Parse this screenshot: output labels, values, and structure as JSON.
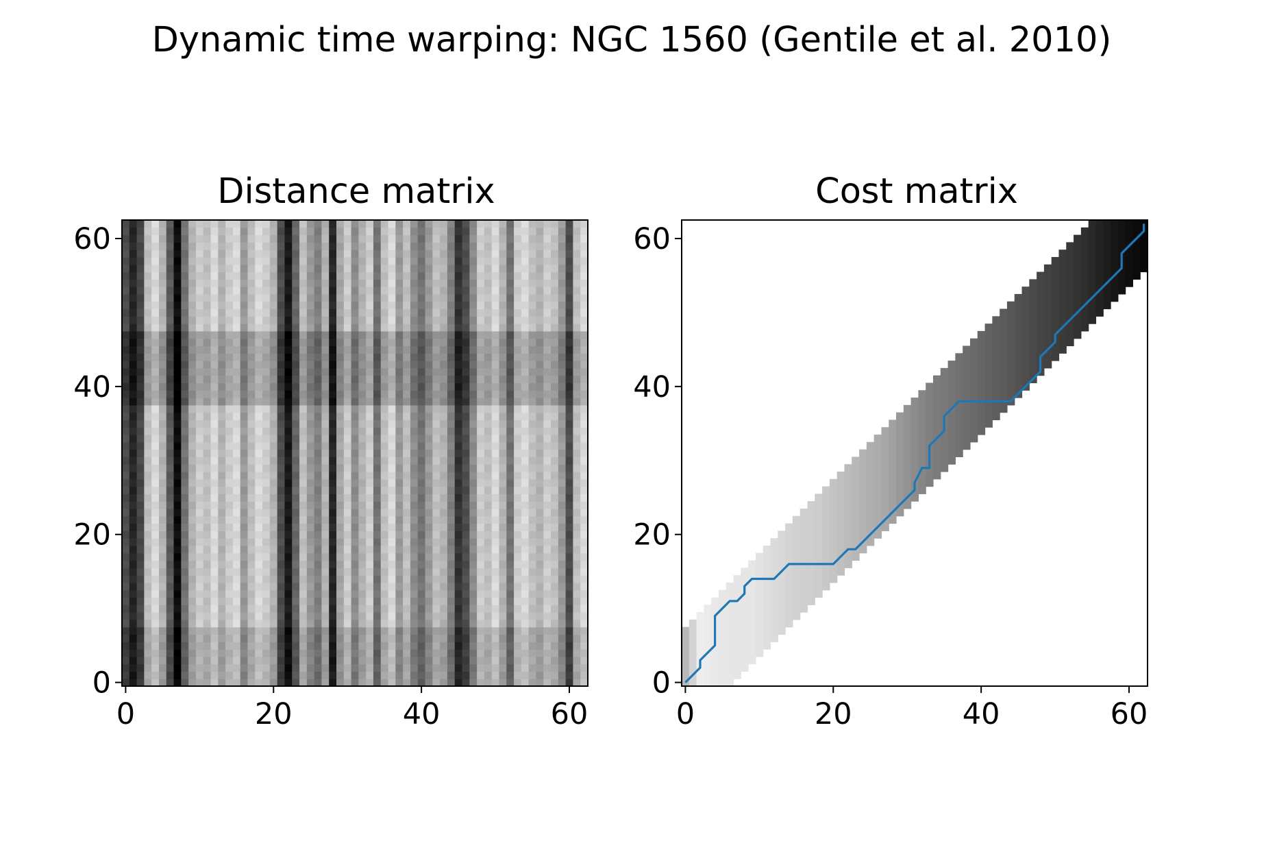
{
  "figure": {
    "title": "Dynamic time warping: NGC 1560 (Gentile et al. 2010)"
  },
  "chart_data": [
    {
      "type": "heatmap",
      "title": "Distance matrix",
      "xlabel": "",
      "ylabel": "",
      "xlim": [
        -0.5,
        62.5
      ],
      "ylim": [
        -0.5,
        62.5
      ],
      "xticks": [
        0,
        20,
        40,
        60
      ],
      "yticks": [
        0,
        20,
        40,
        60
      ],
      "grid": false,
      "colormap": "grayscale (white = low, black = high)",
      "size": [
        63,
        63
      ],
      "column_gray_values": [
        0.3,
        0.15,
        0.28,
        0.75,
        0.85,
        0.7,
        0.35,
        0.05,
        0.45,
        0.7,
        0.8,
        0.75,
        0.85,
        0.7,
        0.8,
        0.85,
        0.6,
        0.75,
        0.85,
        0.8,
        0.7,
        0.3,
        0.1,
        0.4,
        0.75,
        0.6,
        0.5,
        0.7,
        0.15,
        0.65,
        0.8,
        0.55,
        0.7,
        0.8,
        0.45,
        0.75,
        0.85,
        0.6,
        0.75,
        0.55,
        0.45,
        0.6,
        0.75,
        0.7,
        0.5,
        0.2,
        0.3,
        0.55,
        0.8,
        0.75,
        0.85,
        0.7,
        0.45,
        0.8,
        0.85,
        0.75,
        0.7,
        0.8,
        0.75,
        0.6,
        0.3,
        0.75,
        0.85
      ],
      "bands": [
        {
          "from": 0,
          "to": 7,
          "gray_shift": -0.08
        },
        {
          "from": 38,
          "to": 47,
          "gray_shift": -0.12
        }
      ]
    },
    {
      "type": "heatmap",
      "title": "Cost matrix",
      "xlabel": "",
      "ylabel": "",
      "xlim": [
        -0.5,
        62.5
      ],
      "ylim": [
        -0.5,
        62.5
      ],
      "xticks": [
        0,
        20,
        40,
        60
      ],
      "yticks": [
        0,
        20,
        40,
        60
      ],
      "grid": false,
      "colormap": "grayscale (white = low, black = high), computed only inside a diagonal band",
      "band": {
        "lower_offset": -6,
        "upper_offset": 7
      },
      "cost_gray_by_column": [
        [
          0,
          0.72
        ],
        [
          2,
          0.93
        ],
        [
          6,
          0.9
        ],
        [
          9,
          0.9
        ],
        [
          12,
          0.86
        ],
        [
          15,
          0.82
        ],
        [
          18,
          0.8
        ],
        [
          21,
          0.75
        ],
        [
          24,
          0.7
        ],
        [
          27,
          0.66
        ],
        [
          29,
          0.6
        ],
        [
          31,
          0.55
        ],
        [
          33,
          0.5
        ],
        [
          36,
          0.46
        ],
        [
          40,
          0.4
        ],
        [
          44,
          0.34
        ],
        [
          48,
          0.27
        ],
        [
          52,
          0.22
        ],
        [
          55,
          0.16
        ],
        [
          58,
          0.09
        ],
        [
          62,
          0.03
        ]
      ],
      "warping_path": {
        "color": "#1f77b4",
        "x": [
          0,
          2,
          2,
          4,
          4,
          6,
          7,
          8,
          8,
          9,
          12,
          14,
          20,
          22,
          23,
          31,
          31,
          32,
          33,
          33,
          35,
          35,
          37,
          44,
          48,
          48,
          50,
          50,
          59,
          59,
          62,
          62
        ],
        "y": [
          0,
          2,
          3,
          5,
          9,
          11,
          11,
          12,
          13,
          14,
          14,
          16,
          16,
          18,
          18,
          26,
          27,
          29,
          29,
          32,
          34,
          36,
          38,
          38,
          42,
          44,
          46,
          47,
          56,
          58,
          61,
          62
        ]
      }
    }
  ]
}
